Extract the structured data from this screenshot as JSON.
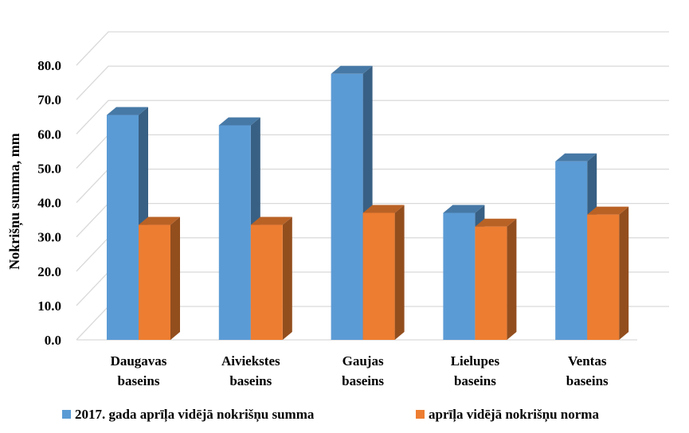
{
  "chart_data": {
    "type": "bar",
    "categories": [
      [
        "Daugavas",
        "baseins"
      ],
      [
        "Aiviekstes",
        "baseins"
      ],
      [
        "Gaujas",
        "baseins"
      ],
      [
        "Lielupes",
        "baseins"
      ],
      [
        "Ventas",
        "baseins"
      ]
    ],
    "series": [
      {
        "name": "2017. gada aprīļa vidējā nokrišņu summa",
        "values": [
          65.5,
          62.5,
          77.5,
          37.0,
          52.0
        ],
        "color": "#5B9BD5"
      },
      {
        "name": "aprīļa vidējā nokrišņu norma",
        "values": [
          33.5,
          33.5,
          37.0,
          33.0,
          36.5
        ],
        "color": "#ED7D31"
      }
    ],
    "ylabel": "Nokrišņu summa, mm",
    "xlabel": "",
    "ylim": [
      0,
      80
    ],
    "yticks": [
      "0.0",
      "10.0",
      "20.0",
      "30.0",
      "40.0",
      "50.0",
      "60.0",
      "70.0",
      "80.0"
    ],
    "grid": true,
    "three_d": true,
    "legend_position": "bottom"
  }
}
